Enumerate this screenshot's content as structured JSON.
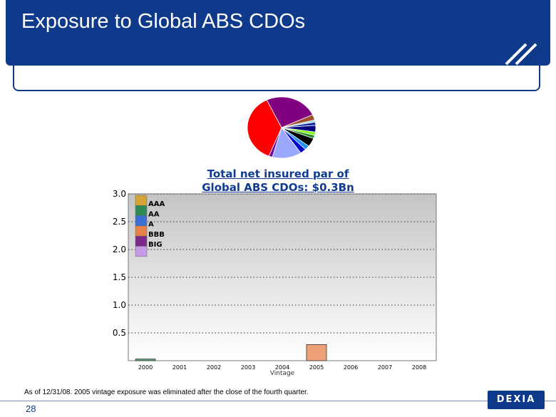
{
  "header": {
    "title": "Exposure to Global ABS CDOs"
  },
  "pie_chart": {
    "type": "pie",
    "slices": [
      {
        "value": 22,
        "color": "#800080"
      },
      {
        "value": 2.5,
        "color": "#a0522d"
      },
      {
        "value": 1,
        "color": "#9ad3e3"
      },
      {
        "value": 1.5,
        "color": "#1428a0"
      },
      {
        "value": 3,
        "color": "#000080"
      },
      {
        "value": 1.5,
        "color": "#7cfc00"
      },
      {
        "value": 1.5,
        "color": "#228b22"
      },
      {
        "value": 4,
        "color": "#000000"
      },
      {
        "value": 2,
        "color": "#1e90ff"
      },
      {
        "value": 2.5,
        "color": "#0000cd"
      },
      {
        "value": 12,
        "color": "#9aa8ff"
      },
      {
        "value": 1.5,
        "color": "#6a0dad"
      },
      {
        "value": 32,
        "color": "#ff0000"
      }
    ]
  },
  "chart_data": {
    "type": "bar",
    "title": "Total net insured par of Global ABS CDOs: $0.3Bn",
    "title_lines": [
      "Total net insured par of",
      "Global ABS CDOs: $0.3Bn"
    ],
    "xlabel": "Vintage",
    "ylabel": "",
    "categories": [
      "2000",
      "2001",
      "2002",
      "2003",
      "2004",
      "2005",
      "2006",
      "2007",
      "2008"
    ],
    "ylim": [
      0,
      3.0
    ],
    "yticks": [
      "0.5",
      "1.0",
      "1.5",
      "2.0",
      "2.5",
      "3.0"
    ],
    "grid": "horizontal dotted",
    "legend_position": "top-left",
    "series": [
      {
        "name": "AAA",
        "color": "#d4a437",
        "values": [
          0,
          0,
          0,
          0,
          0,
          0,
          0,
          0,
          0
        ]
      },
      {
        "name": "AA",
        "color": "#2e8b57",
        "values": [
          0.03,
          0,
          0,
          0,
          0,
          0,
          0,
          0,
          0
        ]
      },
      {
        "name": "A",
        "color": "#3c6fd6",
        "values": [
          0,
          0,
          0,
          0,
          0,
          0,
          0,
          0,
          0
        ]
      },
      {
        "name": "BBB",
        "color": "#e8804a",
        "values": [
          0,
          0,
          0,
          0,
          0,
          0.29,
          0,
          0,
          0
        ]
      },
      {
        "name": "BIG",
        "color": "#7b2a8c",
        "values": [
          0,
          0,
          0,
          0,
          0,
          0,
          0,
          0,
          0
        ]
      },
      {
        "name": "",
        "color": "#c79ae8",
        "values": [
          0,
          0,
          0,
          0,
          0,
          0,
          0,
          0,
          0
        ]
      }
    ]
  },
  "footer": {
    "footnote": "As of 12/31/08.  2005 vintage exposure was eliminated after the close of the fourth quarter.",
    "page_number": "28",
    "logo_text": "DEXIA"
  }
}
